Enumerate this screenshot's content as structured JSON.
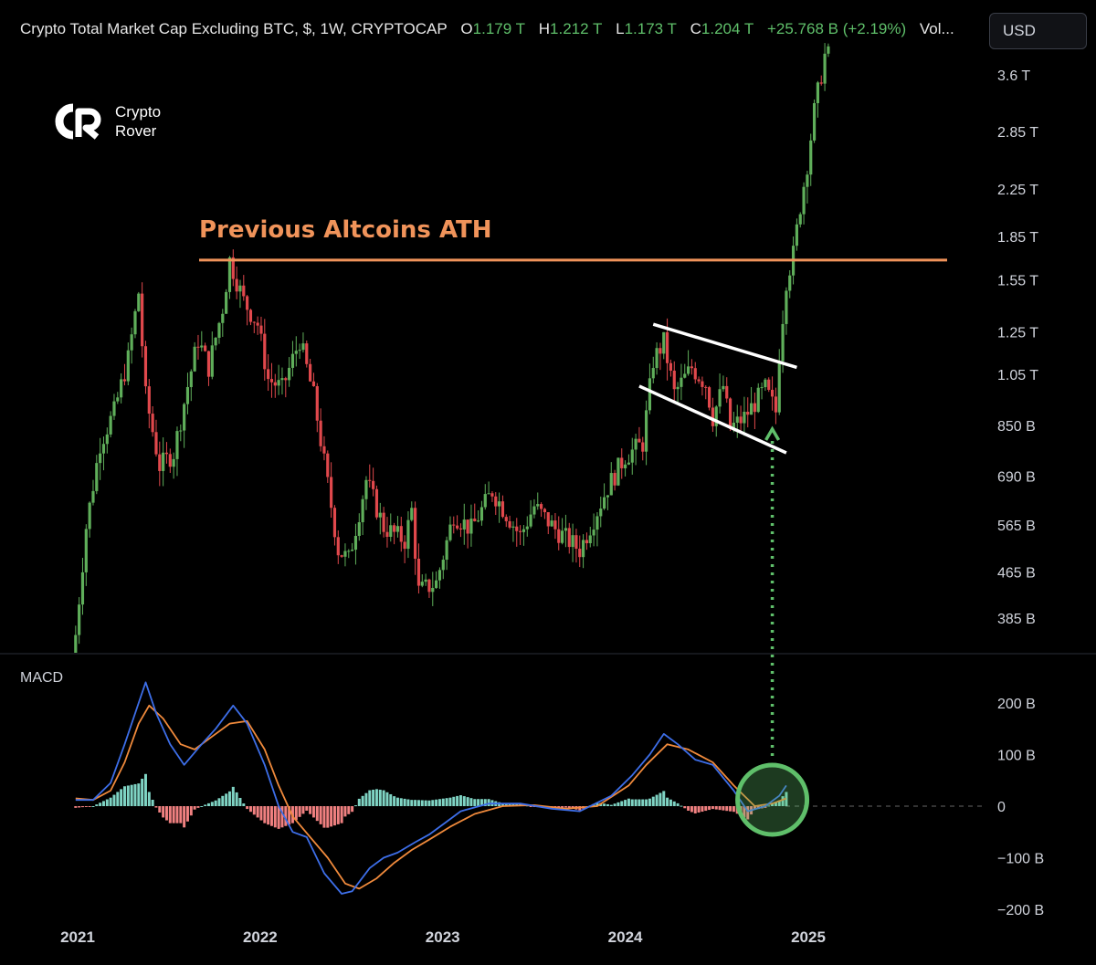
{
  "header": {
    "title": "Crypto Total Market Cap Excluding BTC, $, 1W, CRYPTOCAP",
    "open_label": "O",
    "open": "1.179 T",
    "high_label": "H",
    "high": "1.212 T",
    "low_label": "L",
    "low": "1.173 T",
    "close_label": "C",
    "close": "1.204 T",
    "change": "+25.768 B (+2.19%)",
    "volume_label": "Vol..."
  },
  "currency_button": "USD",
  "logo": {
    "line1": "Crypto",
    "line2": "Rover"
  },
  "colors": {
    "up": "#5fae5a",
    "down": "#e0484c",
    "ath": "#f0935a",
    "macd": "#3d6ee8",
    "signal": "#f08a3c",
    "hist_pos": "#7fd4c4",
    "hist_neg": "#f08080",
    "highlight": "#5fbf6a"
  },
  "chart_data": [
    {
      "type": "candlestick",
      "scale": "log",
      "y_ticks": [
        "3.6 T",
        "2.85 T",
        "2.25 T",
        "1.85 T",
        "1.55 T",
        "1.25 T",
        "1.05 T",
        "850 B",
        "690 B",
        "565 B",
        "465 B",
        "385 B"
      ],
      "y_tick_values": [
        3600,
        2850,
        2250,
        1850,
        1550,
        1250,
        1050,
        850,
        690,
        565,
        465,
        385
      ],
      "x_ticks": [
        "2021",
        "2022",
        "2023",
        "2024",
        "2025"
      ],
      "ylim": [
        330,
        4300
      ],
      "annotation": "Previous Altcoins ATH",
      "ath_level": 1680,
      "trend_points": [
        [
          "2020-12-28",
          310
        ],
        [
          "2021-01-25",
          560
        ],
        [
          "2021-02-22",
          790
        ],
        [
          "2021-03-22",
          900
        ],
        [
          "2021-04-19",
          1120
        ],
        [
          "2021-05-10",
          1470
        ],
        [
          "2021-05-24",
          960
        ],
        [
          "2021-06-21",
          720
        ],
        [
          "2021-07-19",
          760
        ],
        [
          "2021-08-16",
          1000
        ],
        [
          "2021-09-06",
          1210
        ],
        [
          "2021-09-27",
          1080
        ],
        [
          "2021-10-25",
          1380
        ],
        [
          "2021-11-08",
          1680
        ],
        [
          "2021-12-06",
          1420
        ],
        [
          "2022-01-03",
          1290
        ],
        [
          "2022-01-24",
          1030
        ],
        [
          "2022-02-21",
          990
        ],
        [
          "2022-03-28",
          1210
        ],
        [
          "2022-04-25",
          960
        ],
        [
          "2022-05-09",
          800
        ],
        [
          "2022-06-13",
          510
        ],
        [
          "2022-07-04",
          490
        ],
        [
          "2022-08-08",
          680
        ],
        [
          "2022-09-12",
          560
        ],
        [
          "2022-10-24",
          530
        ],
        [
          "2022-11-07",
          600
        ],
        [
          "2022-11-21",
          430
        ],
        [
          "2022-12-26",
          445
        ],
        [
          "2023-01-30",
          590
        ],
        [
          "2023-03-06",
          555
        ],
        [
          "2023-04-17",
          650
        ],
        [
          "2023-06-12",
          540
        ],
        [
          "2023-07-10",
          610
        ],
        [
          "2023-08-21",
          555
        ],
        [
          "2023-10-09",
          510
        ],
        [
          "2023-11-06",
          580
        ],
        [
          "2023-12-04",
          660
        ],
        [
          "2024-01-08",
          750
        ],
        [
          "2024-02-12",
          790
        ],
        [
          "2024-03-04",
          1110
        ],
        [
          "2024-03-25",
          1200
        ],
        [
          "2024-04-15",
          970
        ],
        [
          "2024-05-20",
          1080
        ],
        [
          "2024-06-17",
          1010
        ],
        [
          "2024-07-01",
          880
        ],
        [
          "2024-07-22",
          1000
        ],
        [
          "2024-08-05",
          840
        ],
        [
          "2024-09-02",
          880
        ],
        [
          "2024-10-14",
          990
        ],
        [
          "2024-11-04",
          900
        ],
        [
          "2024-11-11",
          1150
        ],
        [
          "2024-11-25",
          1550
        ],
        [
          "2024-12-09",
          1720
        ],
        [
          "2024-12-23",
          2100
        ],
        [
          "2025-01-06",
          2500
        ],
        [
          "2025-01-20",
          3100
        ],
        [
          "2025-02-10",
          3900
        ]
      ]
    },
    {
      "type": "macd",
      "title": "MACD",
      "y_ticks": [
        "200 B",
        "100 B",
        "0",
        "−100 B",
        "−200 B"
      ],
      "y_tick_values": [
        200,
        100,
        0,
        -100,
        -200
      ],
      "ylim": [
        -230,
        260
      ],
      "macd_points": [
        [
          "2020-12-28",
          12
        ],
        [
          "2021-02-01",
          12
        ],
        [
          "2021-03-08",
          45
        ],
        [
          "2021-04-05",
          120
        ],
        [
          "2021-05-03",
          200
        ],
        [
          "2021-05-17",
          240
        ],
        [
          "2021-06-07",
          180
        ],
        [
          "2021-07-05",
          120
        ],
        [
          "2021-08-02",
          80
        ],
        [
          "2021-09-06",
          120
        ],
        [
          "2021-10-04",
          150
        ],
        [
          "2021-11-08",
          195
        ],
        [
          "2021-12-06",
          160
        ],
        [
          "2022-01-10",
          80
        ],
        [
          "2022-02-07",
          0
        ],
        [
          "2022-03-07",
          -50
        ],
        [
          "2022-04-04",
          -60
        ],
        [
          "2022-05-09",
          -130
        ],
        [
          "2022-06-13",
          -170
        ],
        [
          "2022-07-04",
          -165
        ],
        [
          "2022-08-08",
          -120
        ],
        [
          "2022-09-05",
          -100
        ],
        [
          "2022-10-03",
          -90
        ],
        [
          "2022-11-07",
          -70
        ],
        [
          "2022-12-05",
          -55
        ],
        [
          "2023-01-09",
          -30
        ],
        [
          "2023-02-06",
          -10
        ],
        [
          "2023-04-03",
          5
        ],
        [
          "2023-06-05",
          5
        ],
        [
          "2023-08-07",
          -5
        ],
        [
          "2023-10-02",
          -10
        ],
        [
          "2023-12-04",
          20
        ],
        [
          "2024-01-15",
          60
        ],
        [
          "2024-02-19",
          100
        ],
        [
          "2024-03-18",
          140
        ],
        [
          "2024-04-15",
          120
        ],
        [
          "2024-05-20",
          90
        ],
        [
          "2024-06-24",
          80
        ],
        [
          "2024-08-05",
          30
        ],
        [
          "2024-09-02",
          -10
        ],
        [
          "2024-10-07",
          0
        ],
        [
          "2024-11-04",
          20
        ],
        [
          "2024-11-18",
          40
        ]
      ],
      "signal_points": [
        [
          "2020-12-28",
          15
        ],
        [
          "2021-02-01",
          12
        ],
        [
          "2021-03-08",
          30
        ],
        [
          "2021-04-05",
          85
        ],
        [
          "2021-05-03",
          160
        ],
        [
          "2021-05-24",
          195
        ],
        [
          "2021-06-21",
          170
        ],
        [
          "2021-07-26",
          120
        ],
        [
          "2021-08-23",
          110
        ],
        [
          "2021-09-27",
          135
        ],
        [
          "2021-11-01",
          160
        ],
        [
          "2021-12-06",
          165
        ],
        [
          "2022-01-10",
          110
        ],
        [
          "2022-02-07",
          40
        ],
        [
          "2022-03-07",
          -20
        ],
        [
          "2022-04-11",
          -60
        ],
        [
          "2022-05-16",
          -100
        ],
        [
          "2022-06-20",
          -150
        ],
        [
          "2022-07-18",
          -160
        ],
        [
          "2022-08-22",
          -140
        ],
        [
          "2022-09-26",
          -110
        ],
        [
          "2022-10-31",
          -85
        ],
        [
          "2022-12-05",
          -65
        ],
        [
          "2023-01-16",
          -40
        ],
        [
          "2023-03-06",
          -15
        ],
        [
          "2023-05-01",
          0
        ],
        [
          "2023-07-03",
          2
        ],
        [
          "2023-09-04",
          -5
        ],
        [
          "2023-11-06",
          0
        ],
        [
          "2024-01-08",
          40
        ],
        [
          "2024-02-12",
          80
        ],
        [
          "2024-03-25",
          120
        ],
        [
          "2024-05-06",
          110
        ],
        [
          "2024-06-24",
          85
        ],
        [
          "2024-08-05",
          40
        ],
        [
          "2024-09-16",
          0
        ],
        [
          "2024-10-21",
          5
        ],
        [
          "2024-11-18",
          15
        ]
      ]
    }
  ]
}
